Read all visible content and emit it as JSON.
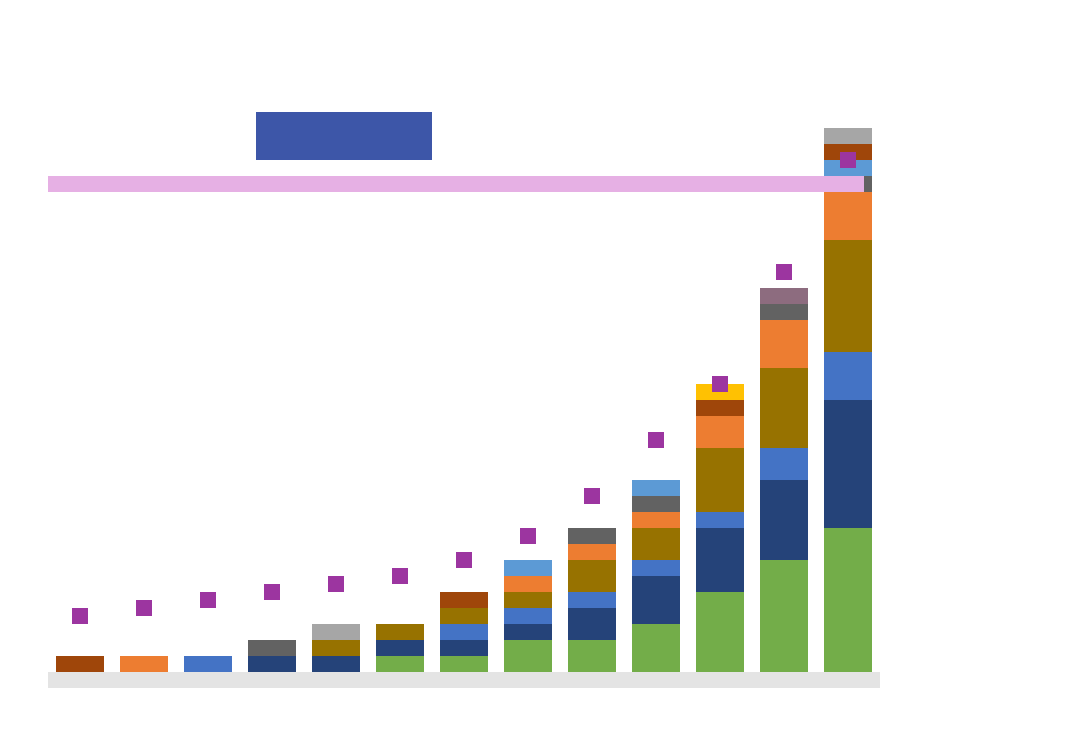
{
  "header": {
    "title": "",
    "legend_label": "",
    "legend_button": ""
  },
  "colors": {
    "highlight_band": "#e6aee2",
    "trend_marker": "#9b35a0",
    "axis": "#e3e3e3"
  },
  "chart_data": {
    "type": "bar",
    "stacked": true,
    "title": "",
    "xlabel": "",
    "ylabel": "",
    "ylim": [
      0,
      34
    ],
    "grid": false,
    "legend": "top-left",
    "categories": [
      "",
      "",
      "",
      "",
      "",
      "",
      "",
      "",
      "",
      "",
      "",
      "",
      ""
    ],
    "series": [
      {
        "color": "#70ad47",
        "values": [
          0,
          0,
          0,
          0,
          0,
          1,
          1,
          2,
          2,
          3,
          5,
          7,
          9
        ]
      },
      {
        "color": "#264478",
        "values": [
          0,
          0,
          0,
          1,
          1,
          1,
          1,
          1,
          2,
          3,
          4,
          5,
          8
        ]
      },
      {
        "color": "#4472c4",
        "values": [
          0,
          0,
          1,
          0,
          0,
          0,
          1,
          1,
          1,
          1,
          1,
          2,
          3
        ]
      },
      {
        "color": "#997300",
        "values": [
          0,
          0,
          0,
          0,
          1,
          1,
          1,
          1,
          2,
          2,
          4,
          5,
          7
        ]
      },
      {
        "color": "#ed7d31",
        "values": [
          0,
          1,
          0,
          0,
          0,
          0,
          0,
          1,
          1,
          1,
          2,
          3,
          3
        ]
      },
      {
        "color": "#636363",
        "values": [
          0,
          0,
          0,
          1,
          0,
          0,
          0,
          0,
          1,
          1,
          0,
          1,
          1
        ]
      },
      {
        "color": "#5b9bd5",
        "values": [
          0,
          0,
          0,
          0,
          0,
          0,
          0,
          1,
          0,
          1,
          0,
          0,
          1
        ]
      },
      {
        "color": "#9e480e",
        "values": [
          1,
          0,
          0,
          0,
          0,
          0,
          1,
          0,
          0,
          0,
          1,
          0,
          1
        ]
      },
      {
        "color": "#a5a5a5",
        "values": [
          0,
          0,
          0,
          0,
          1,
          0,
          0,
          0,
          0,
          0,
          0,
          0,
          1
        ]
      },
      {
        "color": "#ffc000",
        "values": [
          0,
          0,
          0,
          0,
          0,
          0,
          0,
          0,
          0,
          0,
          1,
          0,
          0
        ]
      },
      {
        "color": "#8c6d7f",
        "values": [
          0,
          0,
          0,
          0,
          0,
          0,
          0,
          0,
          0,
          0,
          0,
          1,
          0
        ]
      }
    ],
    "trend": {
      "color": "#9b35a0",
      "values": [
        3.5,
        4.0,
        4.5,
        5.0,
        5.5,
        6.0,
        7.0,
        8.5,
        11.0,
        14.5,
        18.0,
        25.0,
        32.0
      ]
    },
    "reference_line": 30.5
  }
}
